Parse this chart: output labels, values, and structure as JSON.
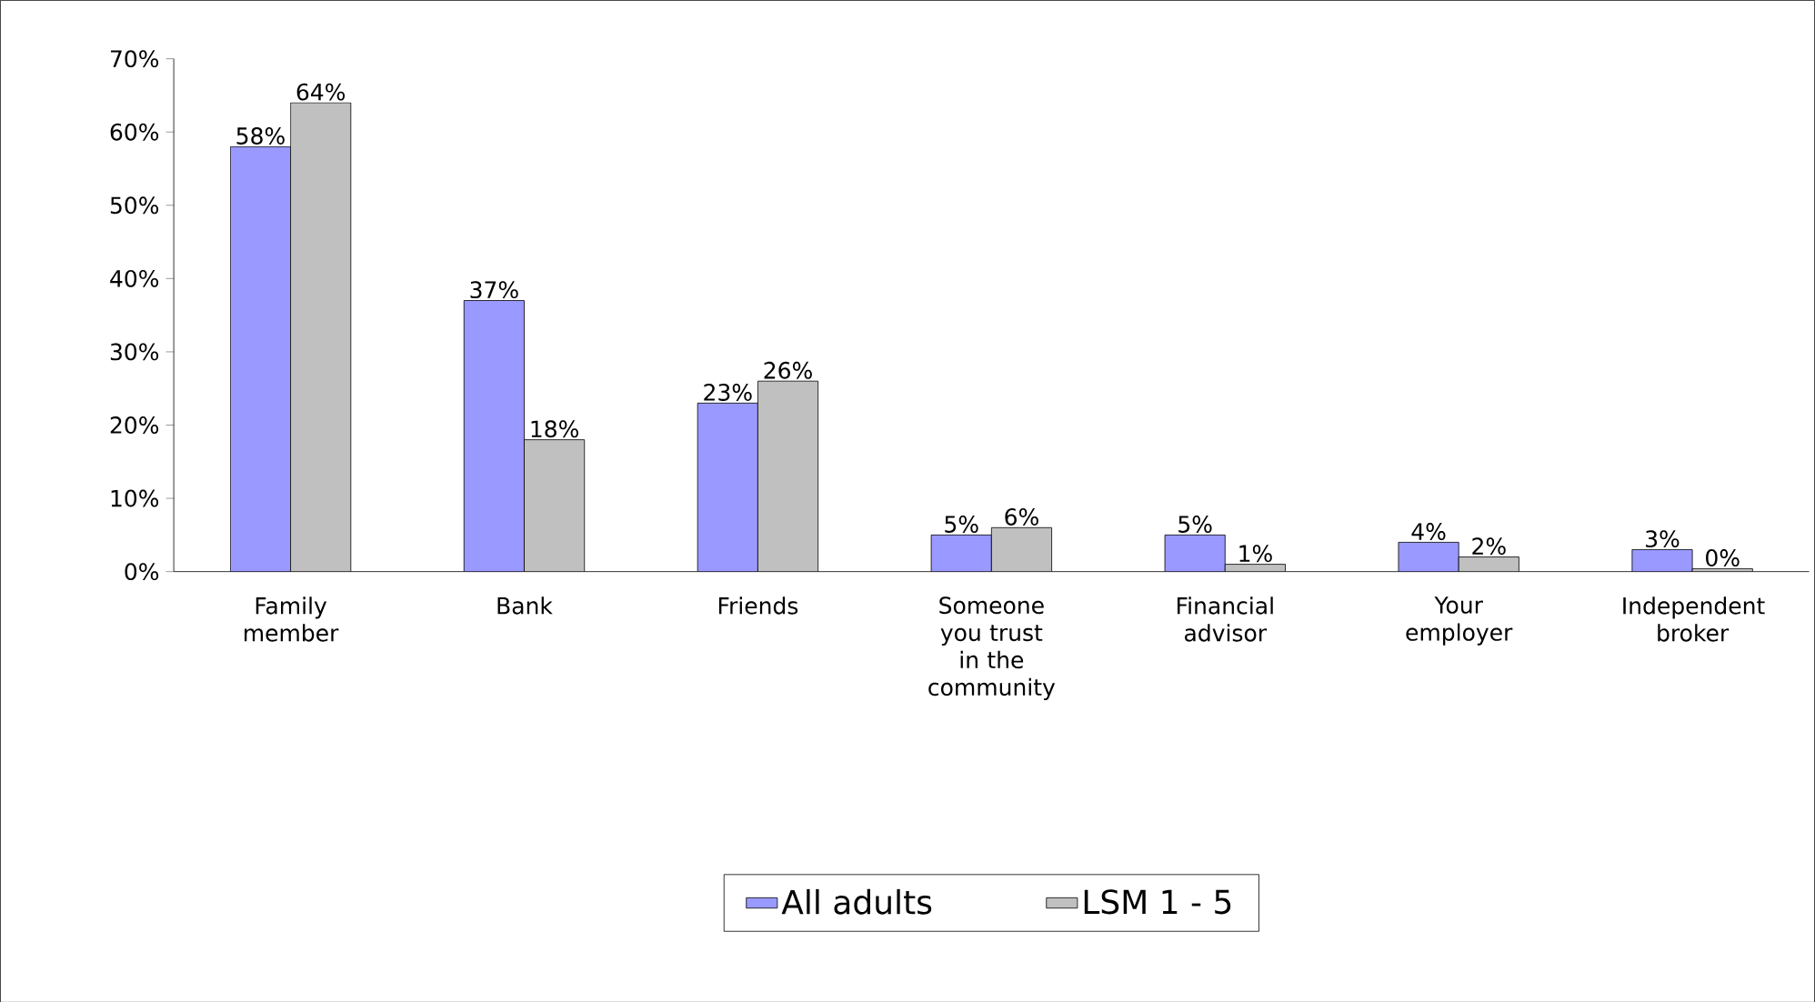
{
  "chart_data": {
    "type": "bar",
    "categories": [
      "Family member",
      "Bank",
      "Friends",
      "Someone you trust in the community",
      "Financial advisor",
      "Your employer",
      "Independent broker"
    ],
    "series": [
      {
        "name": "All adults",
        "color": "#9999ff",
        "values": [
          58,
          37,
          23,
          5,
          5,
          4,
          3
        ],
        "value_labels": [
          "58%",
          "37%",
          "23%",
          "5%",
          "5%",
          "4%",
          "3%"
        ]
      },
      {
        "name": "LSM 1 - 5",
        "color": "#c0c0c0",
        "values": [
          64,
          18,
          26,
          6,
          1,
          2,
          0.4
        ],
        "value_labels": [
          "64%",
          "18%",
          "26%",
          "6%",
          "1%",
          "2%",
          "0%"
        ]
      }
    ],
    "ylim": [
      0,
      70
    ],
    "yticks": [
      {
        "value": 0,
        "label": "0%"
      },
      {
        "value": 10,
        "label": "10%"
      },
      {
        "value": 20,
        "label": "20%"
      },
      {
        "value": 30,
        "label": "30%"
      },
      {
        "value": 40,
        "label": "40%"
      },
      {
        "value": 50,
        "label": "50%"
      },
      {
        "value": 60,
        "label": "60%"
      },
      {
        "value": 70,
        "label": "70%"
      }
    ],
    "grid": false,
    "legend": "bottom"
  }
}
